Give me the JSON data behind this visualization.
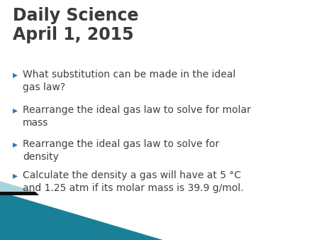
{
  "title_line1": "Daily Science",
  "title_line2": "April 1, 2015",
  "title_color": "#3a3a3a",
  "title_fontsize": 17,
  "bullet_color": "#2e75b6",
  "bullet_text_color": "#404040",
  "bullet_fontsize": 10.0,
  "background_color": "#ffffff",
  "bullets": [
    "What substitution can be made in the ideal\ngas law?",
    "Rearrange the ideal gas law to solve for molar\nmass",
    "Rearrange the ideal gas law to solve for\ndensity",
    "Calculate the density a gas will have at 5 °C\nand 1.25 atm if its molar mass is 39.9 g/mol."
  ],
  "teal_color": "#1a8098",
  "light_teal_color": "#a8d4dc",
  "dark_color": "#101010",
  "fig_width": 4.5,
  "fig_height": 3.38,
  "dpi": 100
}
